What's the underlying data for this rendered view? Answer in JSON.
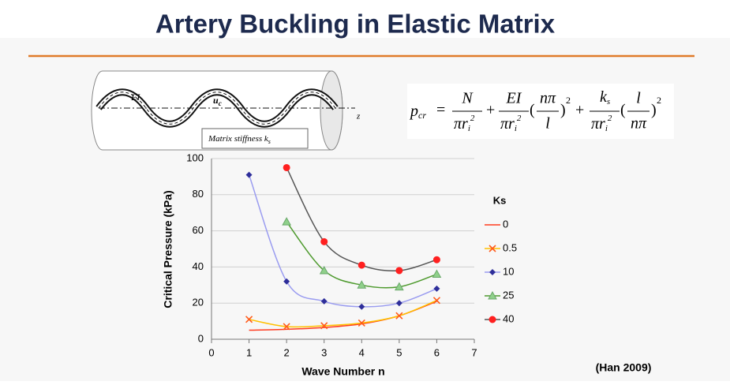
{
  "slide": {
    "title": "Artery Buckling in Elastic Matrix",
    "citation": "(Han 2009)"
  },
  "diagram": {
    "ei": "EI",
    "u": "u",
    "u_sub": "c",
    "z": "z",
    "matrix": "Matrix stiffness k",
    "matrix_sub": "s"
  },
  "formula": {
    "p": "p",
    "cr": "cr",
    "eq": "=",
    "plus": "+",
    "N": "N",
    "EI": "EI",
    "k": "k",
    "s": "s",
    "pi_r": "πr",
    "i": "i",
    "two": "2",
    "n_pi": "nπ",
    "l": "l",
    "open": "(",
    "close": ")"
  },
  "chart_data": {
    "type": "line",
    "x_label": "Wave Number n",
    "y_label": "Critical Pressure (kPa)",
    "legend_title": "Ks",
    "x": [
      1,
      2,
      3,
      4,
      5,
      6
    ],
    "series": [
      {
        "name": "0",
        "color": "#ff3b1f",
        "marker": "none",
        "values": [
          5,
          5.5,
          6.5,
          8.5,
          13,
          21
        ]
      },
      {
        "name": "0.5",
        "color": "#ffc000",
        "marker_color": "#ff5a1a",
        "marker": "x",
        "values": [
          11,
          7,
          7.5,
          9,
          13,
          21.5
        ]
      },
      {
        "name": "10",
        "color": "#9a9cf0",
        "marker_color": "#2e2e9a",
        "marker": "diamond",
        "values": [
          91,
          32,
          21,
          18,
          20,
          28
        ]
      },
      {
        "name": "25",
        "color": "#4e9a2e",
        "marker_color": "#8fd08a",
        "marker": "triangle",
        "values": [
          null,
          65,
          38,
          30,
          29,
          36
        ]
      },
      {
        "name": "40",
        "color": "#555555",
        "marker_color": "#ff2020",
        "marker": "circle",
        "values": [
          null,
          95,
          54,
          41,
          38,
          44
        ]
      }
    ],
    "xlim": [
      0,
      7
    ],
    "xticks": [
      0,
      1,
      2,
      3,
      4,
      5,
      6,
      7
    ],
    "ylim": [
      0,
      100
    ],
    "yticks": [
      0,
      20,
      40,
      60,
      80,
      100
    ],
    "grid": "y"
  }
}
